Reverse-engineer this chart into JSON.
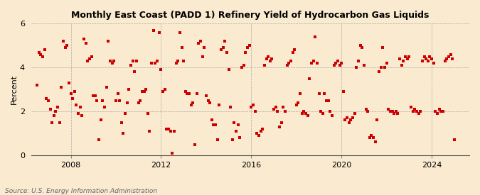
{
  "title": "Monthly East Coast (PADD 1) Refinery Yield of Hydrocarbon Gas Liquids",
  "ylabel": "Percent",
  "source": "Source: U.S. Energy Information Administration",
  "background_color": "#faebd0",
  "plot_bg_color": "#faebd0",
  "marker_color": "#cc0000",
  "grid_color": "#aaaaaa",
  "ylim": [
    0,
    6
  ],
  "yticks": [
    0,
    2,
    4,
    6
  ],
  "start_year": 2006,
  "start_month": 7,
  "values": [
    3.2,
    4.7,
    4.6,
    4.5,
    4.8,
    2.6,
    2.5,
    2.1,
    1.5,
    1.8,
    2.0,
    2.2,
    1.5,
    3.1,
    5.2,
    4.9,
    5.0,
    3.3,
    2.8,
    2.6,
    2.9,
    2.3,
    1.9,
    2.2,
    1.8,
    5.3,
    5.1,
    4.3,
    4.4,
    4.5,
    2.7,
    2.7,
    2.5,
    0.7,
    1.6,
    2.5,
    2.2,
    3.1,
    5.2,
    4.3,
    4.2,
    4.3,
    2.5,
    2.8,
    2.5,
    1.5,
    1.0,
    1.9,
    2.4,
    3.0,
    4.1,
    4.3,
    3.8,
    4.3,
    2.4,
    2.5,
    2.9,
    2.9,
    3.0,
    1.9,
    1.1,
    4.2,
    5.7,
    4.2,
    4.3,
    5.6,
    3.9,
    2.9,
    3.0,
    1.2,
    1.2,
    1.1,
    0.1,
    1.1,
    4.2,
    4.3,
    5.6,
    4.9,
    4.3,
    2.9,
    2.8,
    2.8,
    2.3,
    2.4,
    0.5,
    2.8,
    5.1,
    5.2,
    4.5,
    4.9,
    2.7,
    2.5,
    2.4,
    1.6,
    1.4,
    1.4,
    0.7,
    2.3,
    4.8,
    4.9,
    5.2,
    4.7,
    3.9,
    2.2,
    0.7,
    1.5,
    1.1,
    1.4,
    0.8,
    4.0,
    4.1,
    4.7,
    4.9,
    5.0,
    2.2,
    2.3,
    2.0,
    1.0,
    0.9,
    1.1,
    1.2,
    4.1,
    4.4,
    4.5,
    4.3,
    4.4,
    2.1,
    2.2,
    2.0,
    1.3,
    1.5,
    2.2,
    2.0,
    4.1,
    4.2,
    4.3,
    4.7,
    4.8,
    2.3,
    2.4,
    2.8,
    1.9,
    2.0,
    1.9,
    1.8,
    3.5,
    4.2,
    4.3,
    5.4,
    4.2,
    2.8,
    2.0,
    1.9,
    2.8,
    2.5,
    2.5,
    2.0,
    1.8,
    4.1,
    4.2,
    4.3,
    4.1,
    4.2,
    2.9,
    1.6,
    1.7,
    1.5,
    1.6,
    1.7,
    1.9,
    4.0,
    4.3,
    5.0,
    4.9,
    4.1,
    2.1,
    2.0,
    0.8,
    0.9,
    0.8,
    0.6,
    1.6,
    3.8,
    4.0,
    4.9,
    4.0,
    4.2,
    2.1,
    2.0,
    2.0,
    1.9,
    2.0,
    1.9,
    4.4,
    4.1,
    4.3,
    4.5,
    4.4,
    4.5,
    2.2,
    2.0,
    2.1,
    2.0,
    1.9,
    2.0,
    4.3,
    4.5,
    4.4,
    4.3,
    4.5,
    4.4,
    4.2,
    2.0,
    1.9,
    2.1,
    2.0,
    2.0,
    4.3,
    4.4,
    4.5,
    4.6,
    4.4,
    0.7
  ]
}
